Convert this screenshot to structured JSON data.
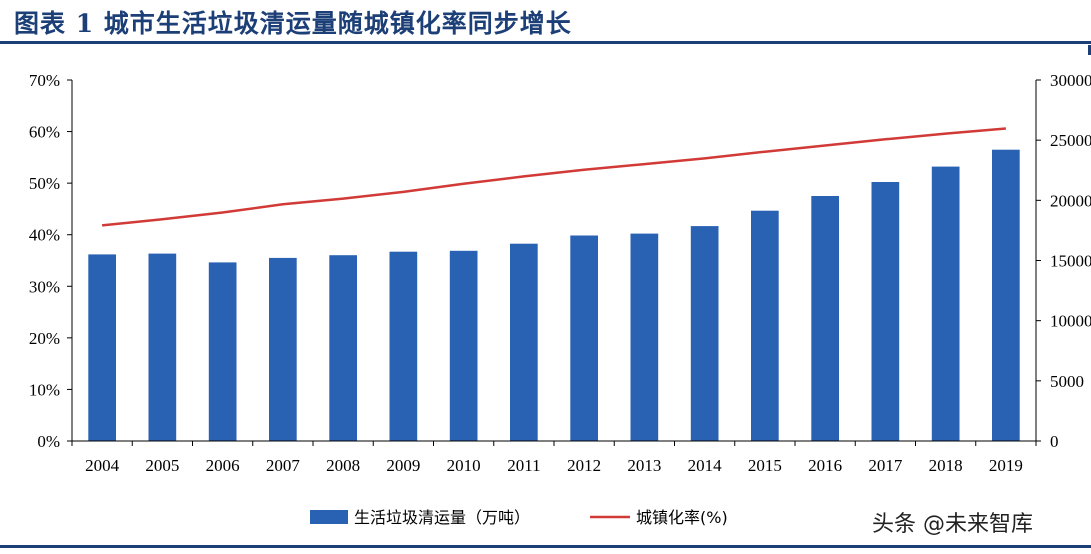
{
  "figure_title": "图表 1   城市生活垃圾清运量随城镇化率同步增长",
  "watermark": "头条 @未来智库",
  "chart_data": {
    "type": "bar",
    "categories": [
      "2004",
      "2005",
      "2006",
      "2007",
      "2008",
      "2009",
      "2010",
      "2011",
      "2012",
      "2013",
      "2014",
      "2015",
      "2016",
      "2017",
      "2018",
      "2019"
    ],
    "series": [
      {
        "name": "生活垃圾清运量（万吨）",
        "type": "bar",
        "axis": "right",
        "color": "#2a62b3",
        "values": [
          15509,
          15577,
          14841,
          15215,
          15438,
          15734,
          15805,
          16395,
          17081,
          17239,
          17860,
          19142,
          20362,
          21521,
          22802,
          24206
        ]
      },
      {
        "name": "城镇化率(%)",
        "type": "line",
        "axis": "left",
        "color": "#d13a36",
        "values": [
          41.8,
          43.0,
          44.3,
          45.9,
          47.0,
          48.3,
          49.9,
          51.3,
          52.6,
          53.7,
          54.8,
          56.1,
          57.3,
          58.5,
          59.6,
          60.6
        ]
      }
    ],
    "y_left": {
      "ticks": [
        "0%",
        "10%",
        "20%",
        "30%",
        "40%",
        "50%",
        "60%",
        "70%"
      ],
      "min": 0,
      "max": 70
    },
    "y_right": {
      "ticks": [
        "0",
        "5000",
        "10000",
        "15000",
        "20000",
        "25000",
        "30000"
      ],
      "min": 0,
      "max": 30000
    },
    "grid": false,
    "legend_position": "bottom"
  }
}
